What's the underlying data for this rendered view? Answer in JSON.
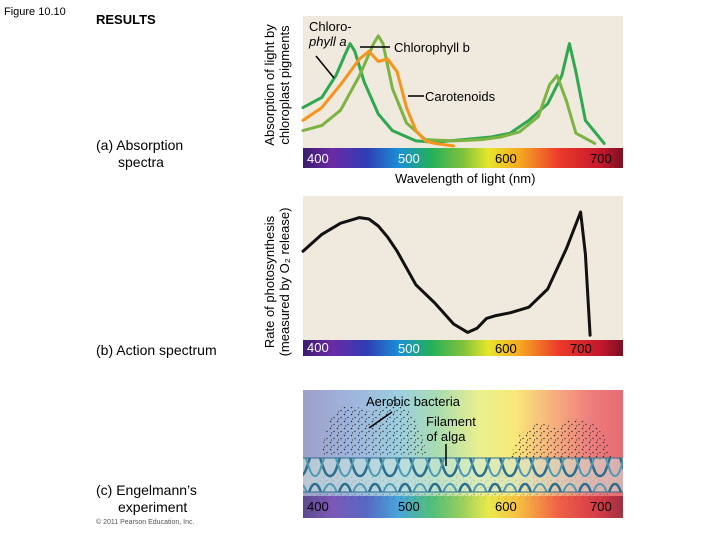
{
  "figure_label": "Figure 10.10",
  "results_label": "RESULTS",
  "panels": {
    "a": {
      "label_line1": "(a) Absorption",
      "label_line2": "spectra",
      "ylabel_line1": "Absorption of light by",
      "ylabel_line2": "chloroplast pigments",
      "xlabel": "Wavelength of light (nm)",
      "ticks": [
        "400",
        "500",
        "600",
        "700"
      ],
      "annotations": {
        "chl_a_line1": "Chloro-",
        "chl_a_line2": "phyll a",
        "chl_b": "Chlorophyll b",
        "carotenoids": "Carotenoids"
      }
    },
    "b": {
      "label": "(b) Action spectrum",
      "ylabel_line1": "Rate of photosynthesis",
      "ylabel_line2": "(measured by O₂ release)",
      "ticks": [
        "400",
        "500",
        "600",
        "700"
      ]
    },
    "c": {
      "label_line1": "(c) Engelmann’s",
      "label_line2": "experiment",
      "ticks": [
        "400",
        "500",
        "600",
        "700"
      ],
      "annotations": {
        "bacteria": "Aerobic bacteria",
        "filament_line1": "Filament",
        "filament_line2": "of alga"
      }
    }
  },
  "copyright": "© 2011 Pearson Education, Inc.",
  "colors": {
    "chlorophyll_a": "#2fa84f",
    "chlorophyll_b": "#7cb342",
    "carotenoids": "#f7941d",
    "action_line": "#111111"
  },
  "chart_data": [
    {
      "type": "line",
      "panel": "a",
      "xlabel": "Wavelength of light (nm)",
      "ylabel": "Absorption of light by chloroplast pigments",
      "xlim": [
        380,
        720
      ],
      "series": [
        {
          "name": "Chlorophyll a",
          "x": [
            380,
            400,
            415,
            425,
            430,
            435,
            445,
            460,
            475,
            500,
            520,
            550,
            580,
            600,
            620,
            640,
            655,
            663,
            670,
            680,
            700
          ],
          "y": [
            0.3,
            0.38,
            0.55,
            0.72,
            0.8,
            0.74,
            0.5,
            0.25,
            0.12,
            0.04,
            0.03,
            0.05,
            0.07,
            0.1,
            0.2,
            0.33,
            0.55,
            0.8,
            0.58,
            0.2,
            0.02
          ]
        },
        {
          "name": "Chlorophyll b",
          "x": [
            380,
            400,
            420,
            440,
            455,
            460,
            465,
            475,
            490,
            510,
            540,
            570,
            590,
            610,
            630,
            642,
            650,
            660,
            670,
            690
          ],
          "y": [
            0.12,
            0.16,
            0.28,
            0.55,
            0.8,
            0.86,
            0.8,
            0.45,
            0.18,
            0.05,
            0.04,
            0.05,
            0.07,
            0.11,
            0.23,
            0.48,
            0.55,
            0.35,
            0.1,
            0.02
          ]
        },
        {
          "name": "Carotenoids",
          "x": [
            380,
            400,
            420,
            440,
            450,
            460,
            470,
            480,
            490,
            500,
            510,
            520,
            540
          ],
          "y": [
            0.2,
            0.3,
            0.48,
            0.68,
            0.74,
            0.66,
            0.68,
            0.58,
            0.3,
            0.12,
            0.04,
            0.02,
            0.0
          ]
        }
      ]
    },
    {
      "type": "line",
      "panel": "b",
      "ylabel": "Rate of photosynthesis (measured by O₂ release)",
      "xlim": [
        380,
        720
      ],
      "series": [
        {
          "name": "",
          "x": [
            380,
            400,
            420,
            440,
            450,
            460,
            470,
            480,
            500,
            520,
            540,
            555,
            565,
            575,
            585,
            600,
            620,
            640,
            660,
            675,
            680,
            685
          ],
          "y": [
            0.62,
            0.74,
            0.82,
            0.86,
            0.85,
            0.8,
            0.72,
            0.62,
            0.38,
            0.25,
            0.1,
            0.04,
            0.07,
            0.14,
            0.16,
            0.18,
            0.22,
            0.35,
            0.64,
            0.9,
            0.6,
            0.02
          ]
        }
      ]
    }
  ]
}
